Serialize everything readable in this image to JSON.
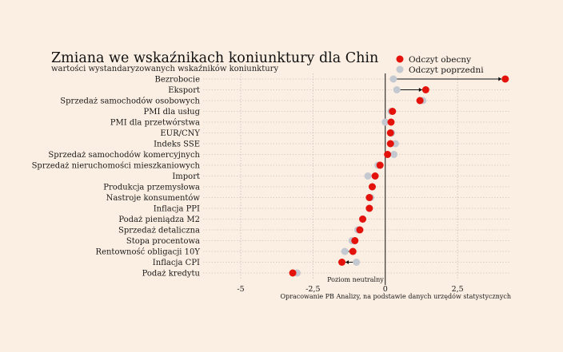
{
  "chart_data": {
    "type": "dot",
    "title": "Zmiana we wskaźnikach koniunktury dla Chin",
    "subtitle": "wartości wystandaryzowanych wskaźników koniunktury",
    "categories": [
      "Bezrobocie",
      "Eksport",
      "Sprzedaż samochodów osobowych",
      "PMI dla usług",
      "PMI dla przetwórstwa",
      "EUR/CNY",
      "Indeks SSE",
      "Sprzedaż samochodów komercyjnych",
      "Sprzedaż nieruchomości mieszkaniowych",
      "Import",
      "Produkcja przemysłowa",
      "Nastroje konsumentów",
      "Inflacja PPI",
      "Podaż pieniądza M2",
      "Sprzedaż detaliczna",
      "Stopa procentowa",
      "Rentowność obligacji 10Y",
      "Inflacja CPI",
      "Podaż kredytu"
    ],
    "series": [
      {
        "name": "Odczyt obecny",
        "color": "#e3120b",
        "values": [
          4.15,
          1.4,
          1.2,
          0.25,
          0.2,
          0.18,
          0.18,
          0.08,
          -0.18,
          -0.35,
          -0.45,
          -0.55,
          -0.55,
          -0.78,
          -0.88,
          -1.05,
          -1.12,
          -1.5,
          -3.2
        ]
      },
      {
        "name": "Odczyt poprzedni",
        "color": "#c4c8d0",
        "values": [
          0.28,
          0.4,
          1.3,
          0.2,
          0.0,
          0.22,
          0.35,
          0.3,
          -0.25,
          -0.6,
          -0.45,
          -0.5,
          -0.55,
          -0.78,
          -0.95,
          -1.15,
          -1.4,
          -1.0,
          -3.05
        ]
      }
    ],
    "xlim": [
      -6.3,
      4.35
    ],
    "xticks": [
      -5,
      -2.5,
      0,
      2.5
    ],
    "xtick_labels": [
      "-5",
      "-2,5",
      "0",
      "2,5"
    ],
    "grid": true,
    "legend_position": "top-right",
    "reference_label": "Poziom neutralny",
    "source": "Opracowanie PB Analizy, na podstawie danych urzędów statystycznych"
  }
}
